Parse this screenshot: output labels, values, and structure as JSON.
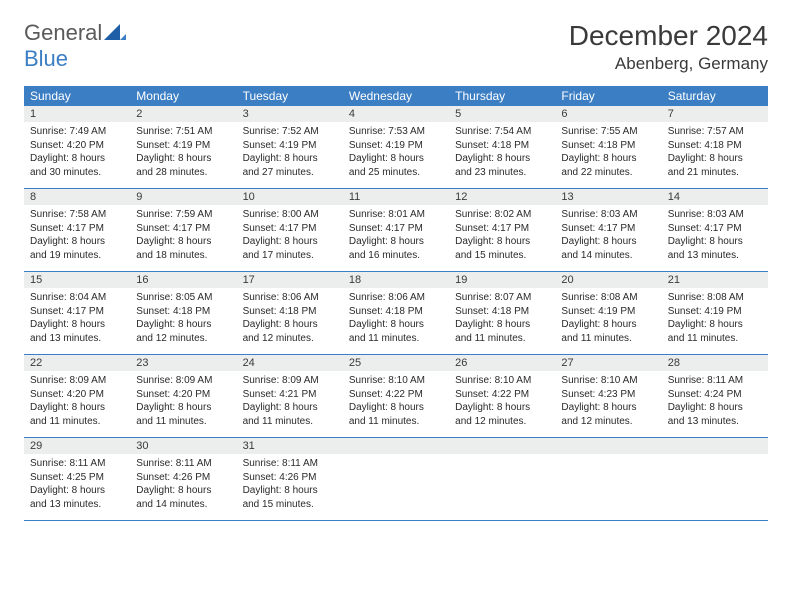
{
  "logo": {
    "word1": "General",
    "word2": "Blue"
  },
  "title": "December 2024",
  "location": "Abenberg, Germany",
  "colors": {
    "header_bg": "#3b7ec4",
    "header_text": "#ffffff",
    "daynum_bg": "#eceded",
    "text": "#3a3a3a",
    "body_text": "#2a2a2a",
    "page_bg": "#ffffff",
    "logo_gray": "#5a5a5a",
    "logo_blue": "#3b7ec4",
    "week_border": "#3b7ec4"
  },
  "typography": {
    "title_fontsize": 28,
    "location_fontsize": 17,
    "dayheader_fontsize": 12,
    "daynum_fontsize": 11,
    "body_fontsize": 10,
    "logo_fontsize": 22
  },
  "calendar": {
    "type": "table",
    "columns": [
      "Sunday",
      "Monday",
      "Tuesday",
      "Wednesday",
      "Thursday",
      "Friday",
      "Saturday"
    ],
    "weeks": [
      [
        {
          "num": "1",
          "sunrise": "Sunrise: 7:49 AM",
          "sunset": "Sunset: 4:20 PM",
          "day1": "Daylight: 8 hours",
          "day2": "and 30 minutes."
        },
        {
          "num": "2",
          "sunrise": "Sunrise: 7:51 AM",
          "sunset": "Sunset: 4:19 PM",
          "day1": "Daylight: 8 hours",
          "day2": "and 28 minutes."
        },
        {
          "num": "3",
          "sunrise": "Sunrise: 7:52 AM",
          "sunset": "Sunset: 4:19 PM",
          "day1": "Daylight: 8 hours",
          "day2": "and 27 minutes."
        },
        {
          "num": "4",
          "sunrise": "Sunrise: 7:53 AM",
          "sunset": "Sunset: 4:19 PM",
          "day1": "Daylight: 8 hours",
          "day2": "and 25 minutes."
        },
        {
          "num": "5",
          "sunrise": "Sunrise: 7:54 AM",
          "sunset": "Sunset: 4:18 PM",
          "day1": "Daylight: 8 hours",
          "day2": "and 23 minutes."
        },
        {
          "num": "6",
          "sunrise": "Sunrise: 7:55 AM",
          "sunset": "Sunset: 4:18 PM",
          "day1": "Daylight: 8 hours",
          "day2": "and 22 minutes."
        },
        {
          "num": "7",
          "sunrise": "Sunrise: 7:57 AM",
          "sunset": "Sunset: 4:18 PM",
          "day1": "Daylight: 8 hours",
          "day2": "and 21 minutes."
        }
      ],
      [
        {
          "num": "8",
          "sunrise": "Sunrise: 7:58 AM",
          "sunset": "Sunset: 4:17 PM",
          "day1": "Daylight: 8 hours",
          "day2": "and 19 minutes."
        },
        {
          "num": "9",
          "sunrise": "Sunrise: 7:59 AM",
          "sunset": "Sunset: 4:17 PM",
          "day1": "Daylight: 8 hours",
          "day2": "and 18 minutes."
        },
        {
          "num": "10",
          "sunrise": "Sunrise: 8:00 AM",
          "sunset": "Sunset: 4:17 PM",
          "day1": "Daylight: 8 hours",
          "day2": "and 17 minutes."
        },
        {
          "num": "11",
          "sunrise": "Sunrise: 8:01 AM",
          "sunset": "Sunset: 4:17 PM",
          "day1": "Daylight: 8 hours",
          "day2": "and 16 minutes."
        },
        {
          "num": "12",
          "sunrise": "Sunrise: 8:02 AM",
          "sunset": "Sunset: 4:17 PM",
          "day1": "Daylight: 8 hours",
          "day2": "and 15 minutes."
        },
        {
          "num": "13",
          "sunrise": "Sunrise: 8:03 AM",
          "sunset": "Sunset: 4:17 PM",
          "day1": "Daylight: 8 hours",
          "day2": "and 14 minutes."
        },
        {
          "num": "14",
          "sunrise": "Sunrise: 8:03 AM",
          "sunset": "Sunset: 4:17 PM",
          "day1": "Daylight: 8 hours",
          "day2": "and 13 minutes."
        }
      ],
      [
        {
          "num": "15",
          "sunrise": "Sunrise: 8:04 AM",
          "sunset": "Sunset: 4:17 PM",
          "day1": "Daylight: 8 hours",
          "day2": "and 13 minutes."
        },
        {
          "num": "16",
          "sunrise": "Sunrise: 8:05 AM",
          "sunset": "Sunset: 4:18 PM",
          "day1": "Daylight: 8 hours",
          "day2": "and 12 minutes."
        },
        {
          "num": "17",
          "sunrise": "Sunrise: 8:06 AM",
          "sunset": "Sunset: 4:18 PM",
          "day1": "Daylight: 8 hours",
          "day2": "and 12 minutes."
        },
        {
          "num": "18",
          "sunrise": "Sunrise: 8:06 AM",
          "sunset": "Sunset: 4:18 PM",
          "day1": "Daylight: 8 hours",
          "day2": "and 11 minutes."
        },
        {
          "num": "19",
          "sunrise": "Sunrise: 8:07 AM",
          "sunset": "Sunset: 4:18 PM",
          "day1": "Daylight: 8 hours",
          "day2": "and 11 minutes."
        },
        {
          "num": "20",
          "sunrise": "Sunrise: 8:08 AM",
          "sunset": "Sunset: 4:19 PM",
          "day1": "Daylight: 8 hours",
          "day2": "and 11 minutes."
        },
        {
          "num": "21",
          "sunrise": "Sunrise: 8:08 AM",
          "sunset": "Sunset: 4:19 PM",
          "day1": "Daylight: 8 hours",
          "day2": "and 11 minutes."
        }
      ],
      [
        {
          "num": "22",
          "sunrise": "Sunrise: 8:09 AM",
          "sunset": "Sunset: 4:20 PM",
          "day1": "Daylight: 8 hours",
          "day2": "and 11 minutes."
        },
        {
          "num": "23",
          "sunrise": "Sunrise: 8:09 AM",
          "sunset": "Sunset: 4:20 PM",
          "day1": "Daylight: 8 hours",
          "day2": "and 11 minutes."
        },
        {
          "num": "24",
          "sunrise": "Sunrise: 8:09 AM",
          "sunset": "Sunset: 4:21 PM",
          "day1": "Daylight: 8 hours",
          "day2": "and 11 minutes."
        },
        {
          "num": "25",
          "sunrise": "Sunrise: 8:10 AM",
          "sunset": "Sunset: 4:22 PM",
          "day1": "Daylight: 8 hours",
          "day2": "and 11 minutes."
        },
        {
          "num": "26",
          "sunrise": "Sunrise: 8:10 AM",
          "sunset": "Sunset: 4:22 PM",
          "day1": "Daylight: 8 hours",
          "day2": "and 12 minutes."
        },
        {
          "num": "27",
          "sunrise": "Sunrise: 8:10 AM",
          "sunset": "Sunset: 4:23 PM",
          "day1": "Daylight: 8 hours",
          "day2": "and 12 minutes."
        },
        {
          "num": "28",
          "sunrise": "Sunrise: 8:11 AM",
          "sunset": "Sunset: 4:24 PM",
          "day1": "Daylight: 8 hours",
          "day2": "and 13 minutes."
        }
      ],
      [
        {
          "num": "29",
          "sunrise": "Sunrise: 8:11 AM",
          "sunset": "Sunset: 4:25 PM",
          "day1": "Daylight: 8 hours",
          "day2": "and 13 minutes."
        },
        {
          "num": "30",
          "sunrise": "Sunrise: 8:11 AM",
          "sunset": "Sunset: 4:26 PM",
          "day1": "Daylight: 8 hours",
          "day2": "and 14 minutes."
        },
        {
          "num": "31",
          "sunrise": "Sunrise: 8:11 AM",
          "sunset": "Sunset: 4:26 PM",
          "day1": "Daylight: 8 hours",
          "day2": "and 15 minutes."
        },
        null,
        null,
        null,
        null
      ]
    ]
  }
}
